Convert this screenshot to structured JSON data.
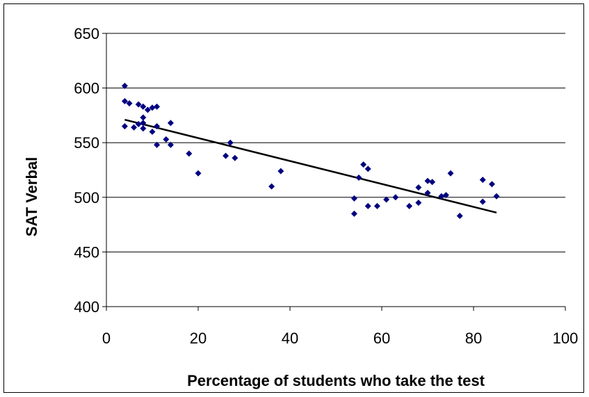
{
  "chart_data": {
    "type": "scatter",
    "title": "",
    "xlabel": "Percentage of students who take the test",
    "ylabel": "SAT Verbal",
    "xlim": [
      0,
      100
    ],
    "ylim": [
      400,
      650
    ],
    "x_ticks": [
      "0",
      "20",
      "40",
      "60",
      "80",
      "100"
    ],
    "y_ticks": [
      "400",
      "450",
      "500",
      "550",
      "600",
      "650"
    ],
    "grid": "horizontal",
    "legend": "none",
    "marker_color": "#000080",
    "trendline_color": "#000000",
    "series": [
      {
        "points": [
          [
            4,
            602
          ],
          [
            4,
            588
          ],
          [
            4,
            565
          ],
          [
            5,
            586
          ],
          [
            6,
            564
          ],
          [
            7,
            585
          ],
          [
            7,
            567
          ],
          [
            8,
            583
          ],
          [
            8,
            573
          ],
          [
            8,
            568
          ],
          [
            8,
            563
          ],
          [
            9,
            580
          ],
          [
            10,
            582
          ],
          [
            10,
            560
          ],
          [
            11,
            583
          ],
          [
            11,
            565
          ],
          [
            11,
            548
          ],
          [
            13,
            553
          ],
          [
            14,
            568
          ],
          [
            14,
            548
          ],
          [
            18,
            540
          ],
          [
            20,
            522
          ],
          [
            26,
            538
          ],
          [
            27,
            550
          ],
          [
            28,
            536
          ],
          [
            36,
            510
          ],
          [
            38,
            524
          ],
          [
            54,
            499
          ],
          [
            54,
            485
          ],
          [
            55,
            518
          ],
          [
            56,
            530
          ],
          [
            57,
            526
          ],
          [
            57,
            492
          ],
          [
            59,
            492
          ],
          [
            61,
            498
          ],
          [
            63,
            500
          ],
          [
            66,
            492
          ],
          [
            68,
            509
          ],
          [
            68,
            495
          ],
          [
            70,
            515
          ],
          [
            70,
            504
          ],
          [
            71,
            514
          ],
          [
            73,
            501
          ],
          [
            74,
            502
          ],
          [
            75,
            522
          ],
          [
            77,
            483
          ],
          [
            82,
            516
          ],
          [
            82,
            496
          ],
          [
            84,
            512
          ],
          [
            85,
            501
          ]
        ]
      }
    ],
    "trendline": {
      "type": "linear",
      "points": [
        [
          4,
          571
        ],
        [
          85,
          486
        ]
      ]
    }
  }
}
